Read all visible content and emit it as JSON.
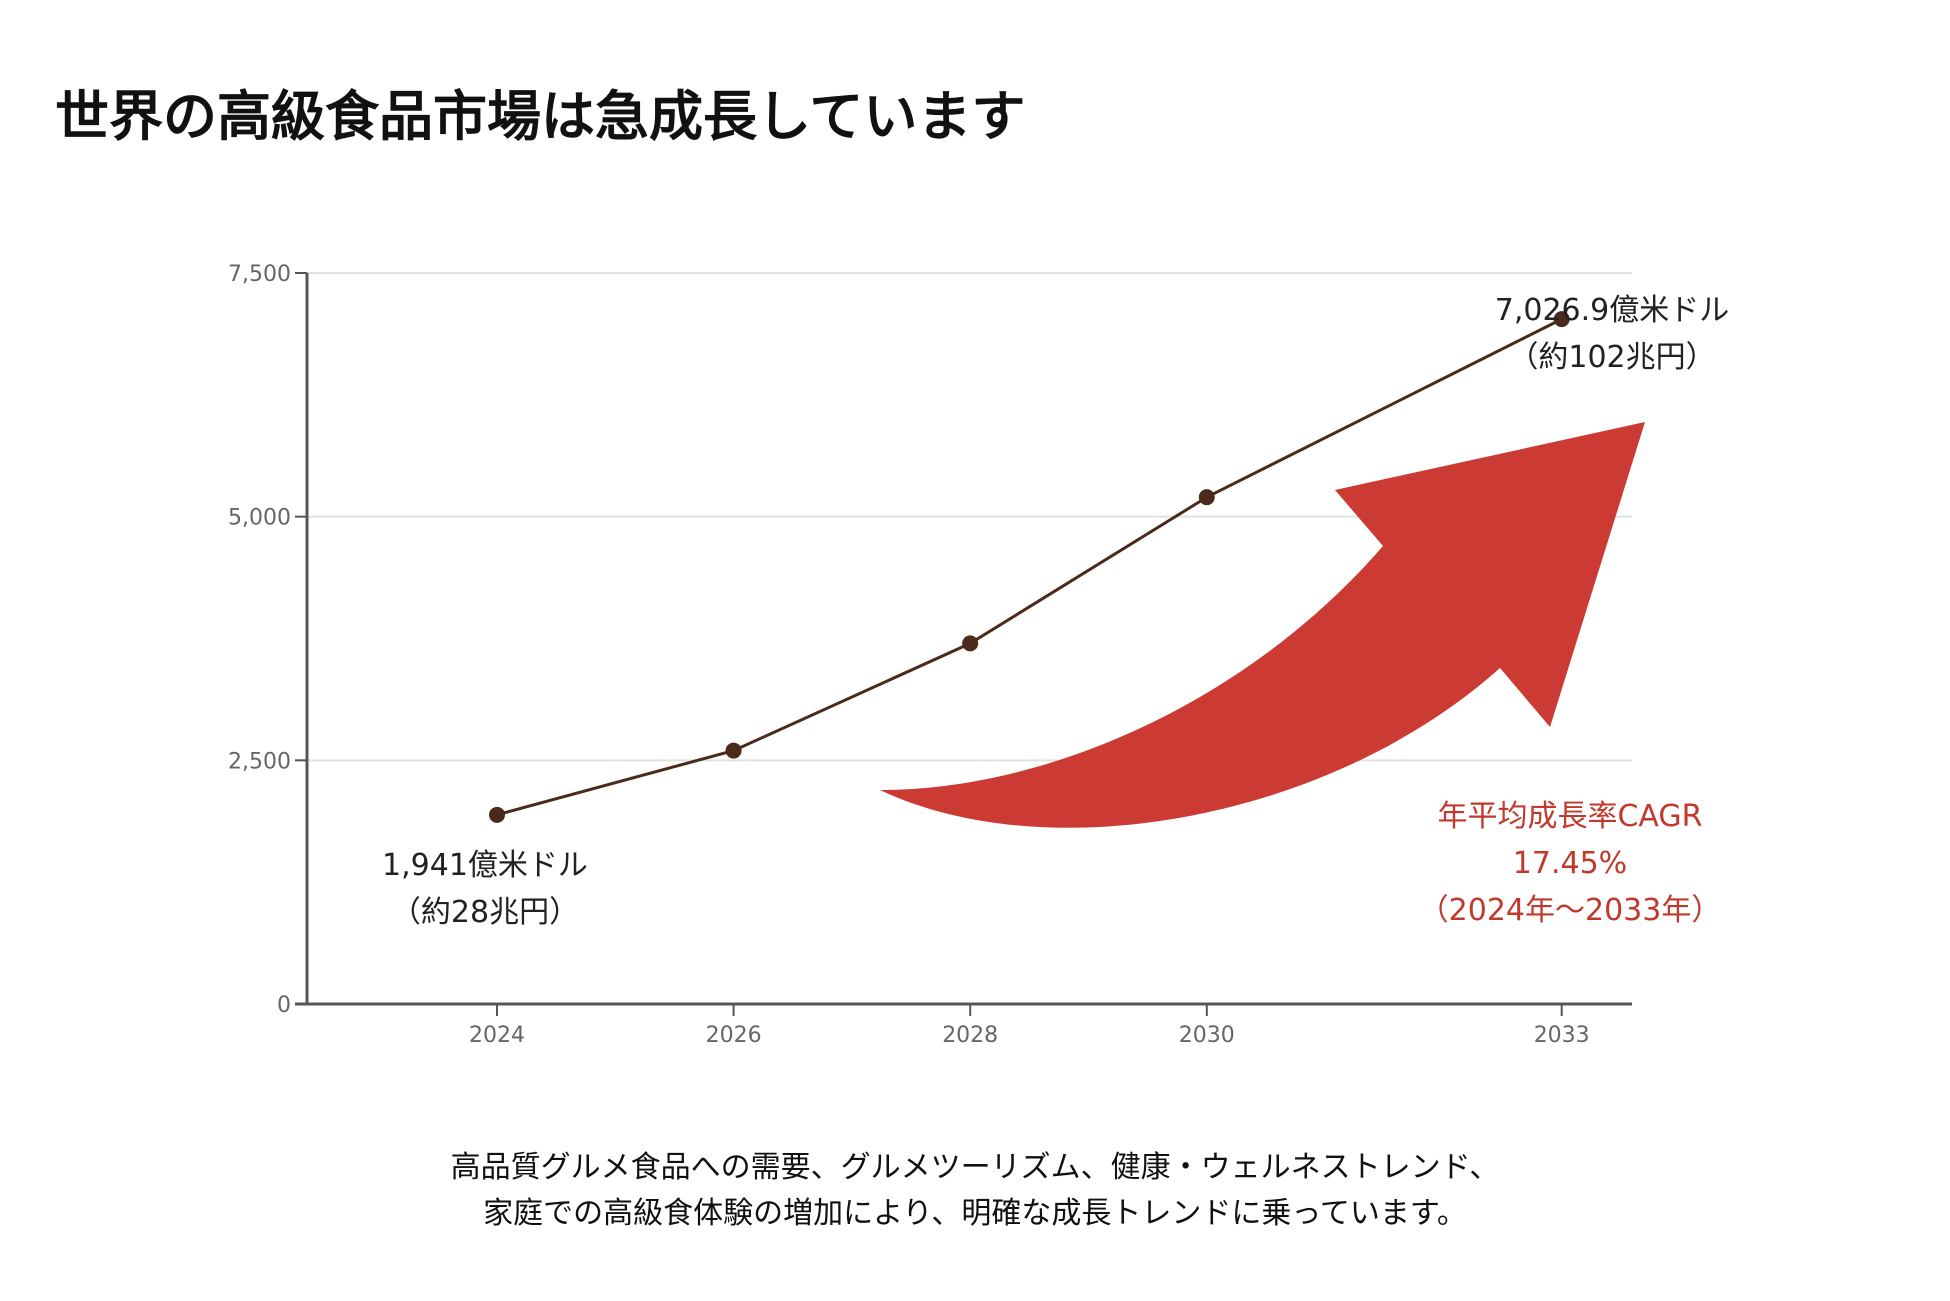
{
  "title": "世界の高級食品市場は急成長しています",
  "chart_data": {
    "type": "line",
    "categories": [
      "2024",
      "2026",
      "2028",
      "2030",
      "2033"
    ],
    "values": [
      1941,
      2600,
      3700,
      5200,
      7026.9
    ],
    "yticks": [
      "0",
      "2,500",
      "5,000",
      "7,500"
    ],
    "ylim": [
      0,
      7500
    ],
    "grid": true,
    "annotations": {
      "start_line1": "1,941億米ドル",
      "start_line2": "（約28兆円）",
      "end_line1": "7,026.9億米ドル",
      "end_line2": "（約102兆円）",
      "cagr_line1": "年平均成長率CAGR",
      "cagr_line2": "17.45%",
      "cagr_line3": "（2024年～2033年）"
    },
    "colors": {
      "line": "#4a2a1a",
      "arrow": "#cc3b33",
      "cagr_text": "#c0392b"
    }
  },
  "caption": {
    "line1": "高品質グルメ食品への需要、グルメツーリズム、健康・ウェルネストレンド、",
    "line2": "家庭での高級食体験の増加により、明確な成長トレンドに乗っています。"
  }
}
